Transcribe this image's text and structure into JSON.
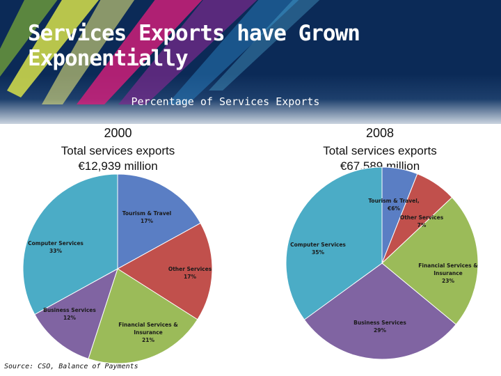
{
  "slide": {
    "title_line1": "Services Exports have Grown",
    "title_line2": "Exponentially",
    "subtitle": "Percentage of Services Exports",
    "source": "Source: CSO, Balance of Payments"
  },
  "colors": {
    "tourism": "#5a7ec4",
    "other": "#c1504c",
    "financial": "#9bbb59",
    "business": "#8064a2",
    "computer": "#4bacc6"
  },
  "chart_data": [
    {
      "type": "pie",
      "title": "2000",
      "total_line1": "Total services exports",
      "total_line2": "€12,939 million",
      "slices": [
        {
          "key": "tourism",
          "label_lines": [
            "Tourism & Travel",
            "17%"
          ],
          "value": 17
        },
        {
          "key": "other",
          "label_lines": [
            "Other Services",
            "17%"
          ],
          "value": 17
        },
        {
          "key": "financial",
          "label_lines": [
            "Financial Services &",
            "Insurance",
            "21%"
          ],
          "value": 21
        },
        {
          "key": "business",
          "label_lines": [
            "Business Services",
            "12%"
          ],
          "value": 12
        },
        {
          "key": "computer",
          "label_lines": [
            "Computer Services",
            "33%"
          ],
          "value": 33
        }
      ]
    },
    {
      "type": "pie",
      "title": "2008",
      "total_line1": "Total services exports",
      "total_line2": "€67,589 million",
      "slices": [
        {
          "key": "tourism",
          "label_lines": [
            "Tourism & Travel,",
            "€6%"
          ],
          "value": 6
        },
        {
          "key": "other",
          "label_lines": [
            "Other Services",
            "7%"
          ],
          "value": 7
        },
        {
          "key": "financial",
          "label_lines": [
            "Financial Services &",
            "Insurance",
            "23%"
          ],
          "value": 23
        },
        {
          "key": "business",
          "label_lines": [
            "Business Services",
            "29%"
          ],
          "value": 29
        },
        {
          "key": "computer",
          "label_lines": [
            "Computer Services",
            "35%"
          ],
          "value": 35
        }
      ]
    }
  ]
}
